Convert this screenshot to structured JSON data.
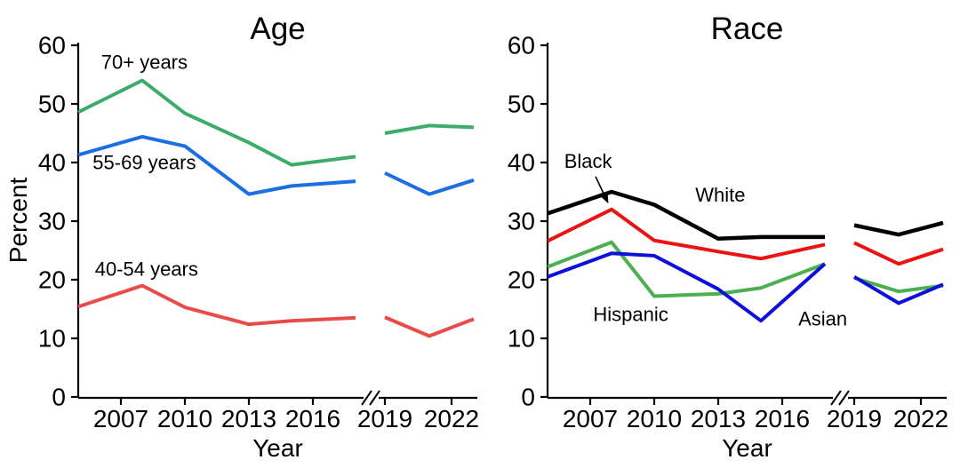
{
  "figure": {
    "background": "#ffffff",
    "axis_color": "#000000"
  },
  "chart_data": [
    {
      "id": "age",
      "type": "line",
      "title": "Age",
      "xlabel": "Year",
      "ylabel": "Percent",
      "ylim": [
        0,
        60
      ],
      "yticks": [
        0,
        10,
        20,
        30,
        40,
        50,
        60
      ],
      "xticks": [
        2007,
        2010,
        2013,
        2016,
        2019,
        2022
      ],
      "axis_break_between": [
        2018,
        2019
      ],
      "grid": false,
      "x": [
        2005,
        2008,
        2010,
        2013,
        2015,
        2018,
        2019,
        2021,
        2023
      ],
      "series": [
        {
          "name": "70+ years",
          "color": "#3BAC6A",
          "values": [
            48.6,
            54.0,
            48.4,
            43.4,
            39.6,
            41.0,
            45.0,
            46.3,
            46.0
          ]
        },
        {
          "name": "55-69 years",
          "color": "#1B6FE3",
          "values": [
            41.3,
            44.4,
            42.8,
            34.6,
            36.0,
            36.8,
            38.2,
            34.6,
            37.0
          ]
        },
        {
          "name": "40-54 years",
          "color": "#E84C49",
          "values": [
            15.4,
            19.0,
            15.3,
            12.4,
            13.0,
            13.5,
            13.6,
            10.4,
            13.3
          ]
        }
      ],
      "annotations": [
        {
          "text": "70+ years",
          "year": 2008.1,
          "percent": 57.1
        },
        {
          "text": "55-69 years",
          "year": 2008.1,
          "percent": 40.0
        },
        {
          "text": "40-54 years",
          "year": 2008.2,
          "percent": 21.8
        }
      ]
    },
    {
      "id": "race",
      "type": "line",
      "title": "Race",
      "xlabel": "Year",
      "ylabel": "",
      "ylim": [
        0,
        60
      ],
      "yticks": [
        0,
        10,
        20,
        30,
        40,
        50,
        60
      ],
      "xticks": [
        2007,
        2010,
        2013,
        2016,
        2019,
        2022
      ],
      "axis_break_between": [
        2018,
        2019
      ],
      "grid": false,
      "x": [
        2005,
        2008,
        2010,
        2013,
        2015,
        2018,
        2019,
        2021,
        2023
      ],
      "series": [
        {
          "name": "White",
          "color": "#000000",
          "values": [
            31.3,
            35.0,
            32.8,
            27.0,
            27.3,
            27.3,
            29.3,
            27.7,
            29.7
          ]
        },
        {
          "name": "Black",
          "color": "#EC1313",
          "values": [
            26.6,
            32.0,
            26.7,
            24.8,
            23.6,
            26.0,
            26.3,
            22.7,
            25.2
          ]
        },
        {
          "name": "Hispanic",
          "color": "#4CAF50",
          "values": [
            22.2,
            26.4,
            17.2,
            17.6,
            18.6,
            22.7,
            20.3,
            18.0,
            19.0
          ]
        },
        {
          "name": "Asian",
          "color": "#0F0FDC",
          "values": [
            20.5,
            24.5,
            24.1,
            18.4,
            13.0,
            22.7,
            20.5,
            16.0,
            19.2
          ]
        }
      ],
      "annotations": [
        {
          "text": "Black",
          "year": 2006.9,
          "percent": 40.2,
          "arrow": {
            "from": {
              "year": 2007.25,
              "percent": 37.6
            },
            "to": {
              "year": 2007.85,
              "percent": 33.0
            }
          }
        },
        {
          "text": "White",
          "year": 2013.1,
          "percent": 34.5
        },
        {
          "text": "Hispanic",
          "year": 2008.9,
          "percent": 14.1
        },
        {
          "text": "Asian",
          "year": 2017.9,
          "percent": 13.3
        }
      ]
    }
  ]
}
